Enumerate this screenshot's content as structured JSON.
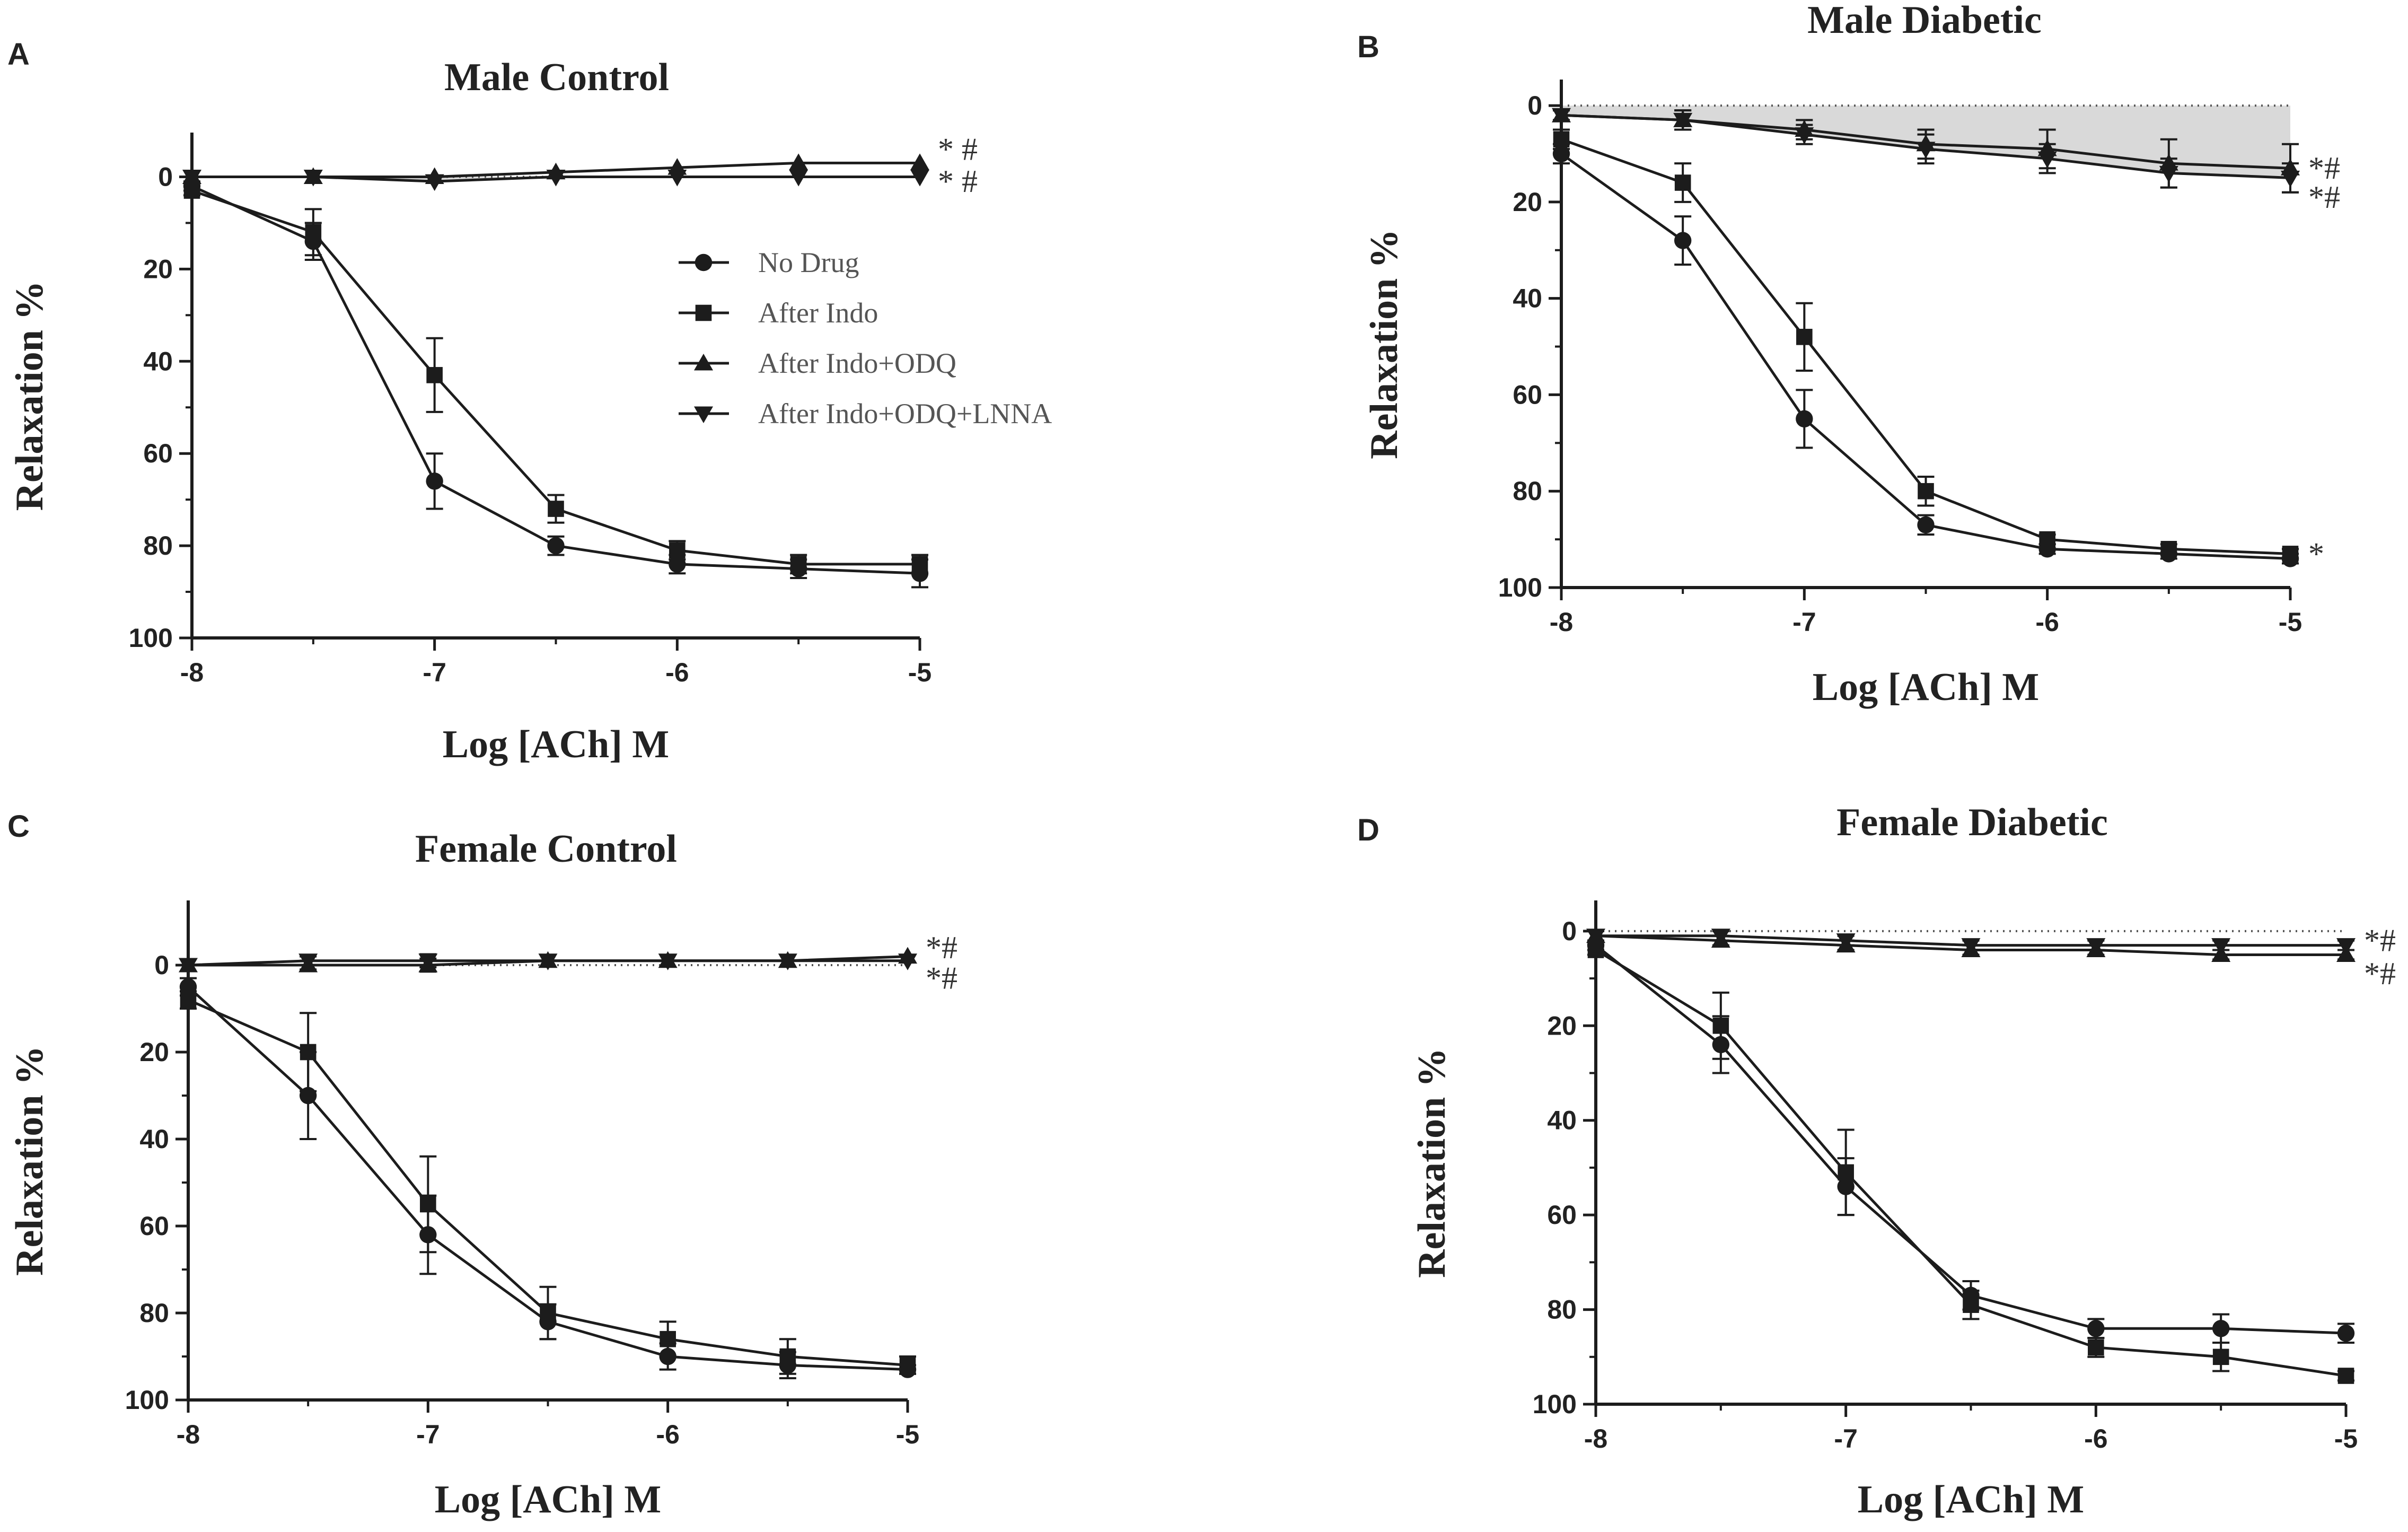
{
  "chart_data": [
    {
      "panel": "A",
      "type": "line",
      "title": "Male Control",
      "xlabel": "Log [ACh] M",
      "ylabel": "Relaxation %",
      "xlim": [
        -8,
        -5
      ],
      "ylim": [
        100,
        -5
      ],
      "y_inverted": true,
      "xticks": [
        "-8",
        "-7",
        "-6",
        "-5"
      ],
      "yticks": [
        "0",
        "20",
        "40",
        "60",
        "80",
        "100"
      ],
      "x": [
        -8,
        -7.5,
        -7,
        -6.5,
        -6,
        -5.5,
        -5
      ],
      "reference": "dotted",
      "shaded_region": true,
      "show_legend": true,
      "series": [
        {
          "name": "No Drug",
          "marker": "circle",
          "values": [
            2,
            14,
            66,
            80,
            84,
            85,
            86
          ],
          "errors": [
            1,
            4,
            6,
            2,
            2,
            2,
            3
          ]
        },
        {
          "name": "After Indo",
          "marker": "square",
          "values": [
            3,
            12,
            43,
            72,
            81,
            84,
            84
          ],
          "errors": [
            1,
            5,
            8,
            3,
            2,
            2,
            2
          ]
        },
        {
          "name": "After Indo+ODQ",
          "marker": "triangle-up",
          "values": [
            0,
            0,
            0,
            -1,
            -2,
            -3,
            -3
          ],
          "errors": [
            0.5,
            0.5,
            0.5,
            0.5,
            0.5,
            0.5,
            0.5
          ]
        },
        {
          "name": "After Indo+ODQ+LNNA",
          "marker": "triangle-down",
          "values": [
            0,
            0,
            1,
            0,
            0,
            0,
            0
          ],
          "errors": [
            0.5,
            0.5,
            0.5,
            0.5,
            0.5,
            0.5,
            0.5
          ]
        }
      ],
      "annotations": [
        {
          "text": "* #",
          "x": -5,
          "y": -6
        },
        {
          "text": "* #",
          "x": -5,
          "y": 1
        }
      ]
    },
    {
      "panel": "B",
      "type": "line",
      "title": "Male Diabetic",
      "xlabel": "Log [ACh] M",
      "ylabel": "Relaxation %",
      "xlim": [
        -8,
        -5
      ],
      "ylim": [
        100,
        -1
      ],
      "y_inverted": true,
      "xticks": [
        "-8",
        "-7",
        "-6",
        "-5"
      ],
      "yticks": [
        "0",
        "20",
        "40",
        "60",
        "80",
        "100"
      ],
      "x": [
        -8,
        -7.5,
        -7,
        -6.5,
        -6,
        -5.5,
        -5
      ],
      "reference": "dotted",
      "shaded_region": true,
      "show_legend": false,
      "series": [
        {
          "name": "No Drug",
          "marker": "circle",
          "values": [
            10,
            28,
            65,
            87,
            92,
            93,
            94
          ],
          "errors": [
            2,
            5,
            6,
            2,
            1,
            1,
            1
          ]
        },
        {
          "name": "After Indo",
          "marker": "square",
          "values": [
            7,
            16,
            48,
            80,
            90,
            92,
            93
          ],
          "errors": [
            2,
            4,
            7,
            3,
            1,
            1,
            1
          ]
        },
        {
          "name": "After Indo+ODQ",
          "marker": "triangle-up",
          "values": [
            2,
            3,
            5,
            8,
            9,
            12,
            13
          ],
          "errors": [
            1,
            2,
            2,
            3,
            4,
            5,
            5
          ]
        },
        {
          "name": "After Indo+ODQ+LNNA",
          "marker": "triangle-down",
          "values": [
            2,
            3,
            6,
            9,
            11,
            14,
            15
          ],
          "errors": [
            1,
            2,
            2,
            3,
            3,
            3,
            3
          ]
        }
      ],
      "annotations": [
        {
          "text": "*#",
          "x": -5,
          "y": 13
        },
        {
          "text": "*#",
          "x": -5,
          "y": 19
        },
        {
          "text": "*",
          "x": -5,
          "y": 93
        }
      ]
    },
    {
      "panel": "C",
      "type": "line",
      "title": "Female Control",
      "xlabel": "Log [ACh] M",
      "ylabel": "Relaxation %",
      "xlim": [
        -8,
        -5
      ],
      "ylim": [
        100,
        -10
      ],
      "y_inverted": true,
      "xticks": [
        "-8",
        "-7",
        "-6",
        "-5"
      ],
      "yticks": [
        "0",
        "20",
        "40",
        "60",
        "80",
        "100"
      ],
      "x": [
        -8,
        -7.5,
        -7,
        -6.5,
        -6,
        -5.5,
        -5
      ],
      "reference": "dotted",
      "shaded_region": false,
      "show_legend": false,
      "series": [
        {
          "name": "No Drug",
          "marker": "circle",
          "values": [
            5,
            30,
            62,
            82,
            90,
            92,
            93
          ],
          "errors": [
            2,
            10,
            9,
            4,
            3,
            3,
            1
          ]
        },
        {
          "name": "After Indo",
          "marker": "square",
          "values": [
            8,
            20,
            55,
            80,
            86,
            90,
            92
          ],
          "errors": [
            2,
            9,
            11,
            6,
            4,
            4,
            2
          ]
        },
        {
          "name": "After Indo+ODQ",
          "marker": "triangle-up",
          "values": [
            0,
            0,
            0,
            -1,
            -1,
            -1,
            -2
          ],
          "errors": [
            0.5,
            1,
            1.5,
            0.5,
            0.5,
            0.5,
            0.5
          ]
        },
        {
          "name": "After Indo+ODQ+LNNA",
          "marker": "triangle-down",
          "values": [
            0,
            -1,
            -1,
            -1,
            -1,
            -1,
            -1
          ],
          "errors": [
            0.5,
            1,
            1.5,
            0.5,
            0.5,
            0.5,
            0.5
          ]
        }
      ],
      "annotations": [
        {
          "text": "*#",
          "x": -5,
          "y": -4
        },
        {
          "text": "*#",
          "x": -5,
          "y": 3
        }
      ]
    },
    {
      "panel": "D",
      "type": "line",
      "title": "Female Diabetic",
      "xlabel": "Log [ACh] M",
      "ylabel": "Relaxation %",
      "xlim": [
        -8,
        -5
      ],
      "ylim": [
        100,
        -2
      ],
      "y_inverted": true,
      "xticks": [
        "-8",
        "-7",
        "-6",
        "-5"
      ],
      "yticks": [
        "0",
        "20",
        "40",
        "60",
        "80",
        "100"
      ],
      "x": [
        -8,
        -7.5,
        -7,
        -6.5,
        -6,
        -5.5,
        -5
      ],
      "reference": "dotted",
      "shaded_region": false,
      "show_legend": false,
      "series": [
        {
          "name": "No Drug",
          "marker": "circle",
          "values": [
            3,
            24,
            54,
            77,
            84,
            84,
            85
          ],
          "errors": [
            1,
            6,
            6,
            3,
            2,
            3,
            2
          ]
        },
        {
          "name": "After Indo",
          "marker": "square",
          "values": [
            4,
            20,
            51,
            79,
            88,
            90,
            94
          ],
          "errors": [
            1,
            7,
            9,
            3,
            2,
            3,
            1
          ]
        },
        {
          "name": "After Indo+ODQ",
          "marker": "triangle-up",
          "values": [
            1,
            2,
            3,
            4,
            4,
            5,
            5
          ],
          "errors": [
            1,
            1,
            1,
            1,
            1,
            1,
            1
          ]
        },
        {
          "name": "After Indo+ODQ+LNNA",
          "marker": "triangle-down",
          "values": [
            1,
            1,
            2,
            3,
            3,
            3,
            3
          ],
          "errors": [
            1,
            1,
            1,
            1,
            1,
            1,
            1
          ]
        }
      ],
      "annotations": [
        {
          "text": "*#",
          "x": -5,
          "y": 2
        },
        {
          "text": "*#",
          "x": -5,
          "y": 9
        }
      ]
    }
  ]
}
